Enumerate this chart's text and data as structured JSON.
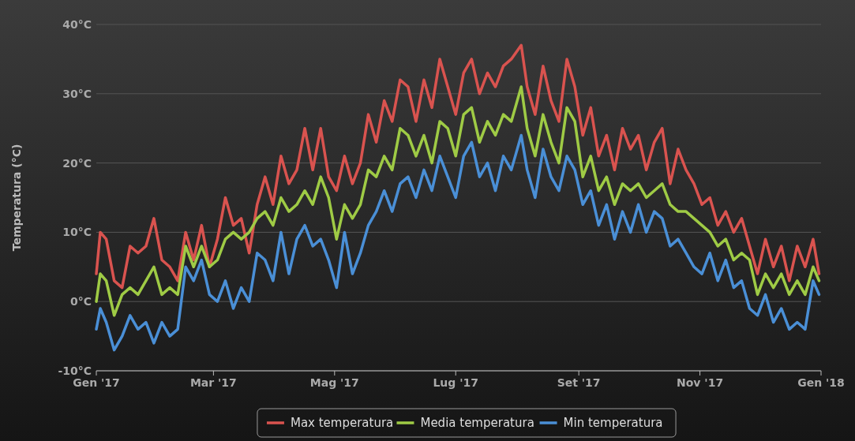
{
  "chart_data": {
    "type": "line",
    "ylabel": "Temperatura (°C)",
    "x": [
      "2017-01-01",
      "2017-01-03",
      "2017-01-06",
      "2017-01-10",
      "2017-01-14",
      "2017-01-18",
      "2017-01-22",
      "2017-01-26",
      "2017-01-30",
      "2017-02-03",
      "2017-02-07",
      "2017-02-11",
      "2017-02-15",
      "2017-02-19",
      "2017-02-23",
      "2017-02-27",
      "2017-03-03",
      "2017-03-07",
      "2017-03-11",
      "2017-03-15",
      "2017-03-19",
      "2017-03-23",
      "2017-03-27",
      "2017-03-31",
      "2017-04-04",
      "2017-04-08",
      "2017-04-12",
      "2017-04-16",
      "2017-04-20",
      "2017-04-24",
      "2017-04-28",
      "2017-05-02",
      "2017-05-06",
      "2017-05-10",
      "2017-05-14",
      "2017-05-18",
      "2017-05-22",
      "2017-05-26",
      "2017-05-30",
      "2017-06-03",
      "2017-06-07",
      "2017-06-11",
      "2017-06-15",
      "2017-06-19",
      "2017-06-23",
      "2017-06-27",
      "2017-07-01",
      "2017-07-05",
      "2017-07-09",
      "2017-07-13",
      "2017-07-17",
      "2017-07-21",
      "2017-07-25",
      "2017-07-29",
      "2017-08-03",
      "2017-08-06",
      "2017-08-10",
      "2017-08-14",
      "2017-08-18",
      "2017-08-22",
      "2017-08-26",
      "2017-08-30",
      "2017-09-03",
      "2017-09-07",
      "2017-09-11",
      "2017-09-15",
      "2017-09-19",
      "2017-09-23",
      "2017-09-27",
      "2017-10-01",
      "2017-10-05",
      "2017-10-09",
      "2017-10-13",
      "2017-10-17",
      "2017-10-21",
      "2017-10-25",
      "2017-10-29",
      "2017-11-02",
      "2017-11-06",
      "2017-11-10",
      "2017-11-14",
      "2017-11-18",
      "2017-11-22",
      "2017-11-26",
      "2017-11-30",
      "2017-12-04",
      "2017-12-08",
      "2017-12-12",
      "2017-12-16",
      "2017-12-20",
      "2017-12-24",
      "2017-12-28",
      "2017-12-31"
    ],
    "series": [
      {
        "name": "Max temperatura",
        "color": "#d9534f",
        "values": [
          4,
          10,
          9,
          3,
          2,
          8,
          7,
          8,
          12,
          6,
          5,
          3,
          10,
          6,
          11,
          5,
          9,
          15,
          11,
          12,
          7,
          14,
          18,
          14,
          21,
          17,
          19,
          25,
          19,
          25,
          18,
          16,
          21,
          17,
          20,
          27,
          23,
          29,
          26,
          32,
          31,
          26,
          32,
          28,
          35,
          31,
          27,
          33,
          35,
          30,
          33,
          31,
          34,
          35,
          37,
          31,
          27,
          34,
          29,
          26,
          35,
          31,
          24,
          28,
          21,
          24,
          19,
          25,
          22,
          24,
          19,
          23,
          25,
          17,
          22,
          19,
          17,
          14,
          15,
          11,
          13,
          10,
          12,
          8,
          4,
          9,
          5,
          8,
          3,
          8,
          5,
          9,
          4
        ]
      },
      {
        "name": "Media temperatura",
        "color": "#9fcb45",
        "values": [
          0,
          4,
          3,
          -2,
          1,
          2,
          1,
          3,
          5,
          1,
          2,
          1,
          8,
          5,
          8,
          5,
          6,
          9,
          10,
          9,
          10,
          12,
          13,
          11,
          15,
          13,
          14,
          16,
          14,
          18,
          15,
          9,
          14,
          12,
          14,
          19,
          18,
          21,
          19,
          25,
          24,
          21,
          24,
          20,
          26,
          25,
          21,
          27,
          28,
          23,
          26,
          24,
          27,
          26,
          31,
          25,
          21,
          27,
          23,
          20,
          28,
          26,
          18,
          21,
          16,
          18,
          14,
          17,
          16,
          17,
          15,
          16,
          17,
          14,
          13,
          13,
          12,
          11,
          10,
          8,
          9,
          6,
          7,
          6,
          1,
          4,
          2,
          4,
          1,
          3,
          1,
          5,
          3
        ]
      },
      {
        "name": "Min temperatura",
        "color": "#4a8fd6",
        "values": [
          -4,
          -1,
          -3,
          -7,
          -5,
          -2,
          -4,
          -3,
          -6,
          -3,
          -5,
          -4,
          5,
          3,
          6,
          1,
          0,
          3,
          -1,
          2,
          0,
          7,
          6,
          3,
          10,
          4,
          9,
          11,
          8,
          9,
          6,
          2,
          10,
          4,
          7,
          11,
          13,
          16,
          13,
          17,
          18,
          15,
          19,
          16,
          21,
          18,
          15,
          21,
          23,
          18,
          20,
          16,
          21,
          19,
          24,
          19,
          15,
          22,
          18,
          16,
          21,
          19,
          14,
          16,
          11,
          14,
          9,
          13,
          10,
          14,
          10,
          13,
          12,
          8,
          9,
          7,
          5,
          4,
          7,
          3,
          6,
          2,
          3,
          -1,
          -2,
          1,
          -3,
          -1,
          -4,
          -3,
          -4,
          3,
          1
        ]
      }
    ],
    "xlim": [
      "2017-01-01",
      "2018-01-01"
    ],
    "xticks": [
      {
        "value": "2017-01-01",
        "label": "Gen '17"
      },
      {
        "value": "2017-03-01",
        "label": "Mar '17"
      },
      {
        "value": "2017-05-01",
        "label": "Mag '17"
      },
      {
        "value": "2017-07-01",
        "label": "Lug '17"
      },
      {
        "value": "2017-09-01",
        "label": "Set '17"
      },
      {
        "value": "2017-11-01",
        "label": "Nov '17"
      },
      {
        "value": "2018-01-01",
        "label": "Gen '18"
      }
    ],
    "ylim": [
      -10,
      40
    ],
    "yticks": [
      {
        "value": -10,
        "label": "-10°C"
      },
      {
        "value": 0,
        "label": "0°C"
      },
      {
        "value": 10,
        "label": "10°C"
      },
      {
        "value": 20,
        "label": "20°C"
      },
      {
        "value": 30,
        "label": "30°C"
      },
      {
        "value": 40,
        "label": "40°C"
      }
    ],
    "grid": "y",
    "legend": "bottom",
    "marker": "none",
    "line_style": "solid"
  }
}
